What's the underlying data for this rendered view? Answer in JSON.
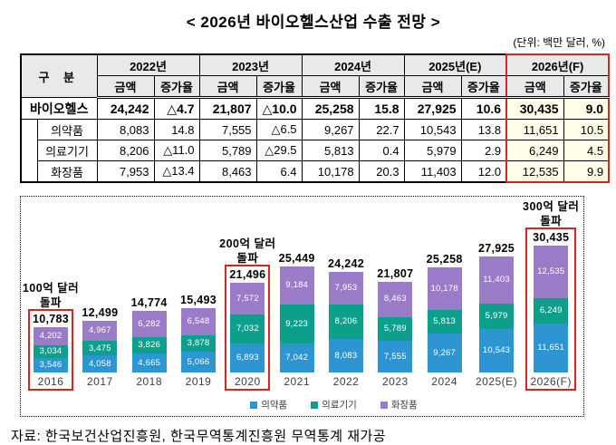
{
  "page": {
    "title": "< 2026년 바이오헬스산업 수출 전망 >",
    "unit_note": "(단위: 백만 달러, %)",
    "source": "자료: 한국보건산업진흥원, 한국무역통계진흥원 무역통계 재가공"
  },
  "colors": {
    "accent_red": "#d9251d",
    "highlight_bg": "#fffde7",
    "header_bg": "#e9e9e9",
    "pharma_blue": "#2c95d2",
    "device_teal": "#0ca08c",
    "cosmetics_purple": "#9a7bc8"
  },
  "table": {
    "corner_label": "구  분",
    "sub_headers": [
      "금액",
      "증가율"
    ],
    "year_groups": [
      "2022년",
      "2023년",
      "2024년",
      "2025년(E)",
      "2026년(F)"
    ],
    "highlight_group_index": 4,
    "rows": [
      {
        "label": "바이오헬스",
        "cells": [
          "24,242",
          "△4.7",
          "21,807",
          "△10.0",
          "25,258",
          "15.8",
          "27,925",
          "10.6",
          "30,435",
          "9.0"
        ]
      },
      {
        "label": "의약품",
        "cells": [
          "8,083",
          "14.8",
          "7,555",
          "△6.5",
          "9,267",
          "22.7",
          "10,543",
          "13.8",
          "11,651",
          "10.5"
        ]
      },
      {
        "label": "의료기기",
        "cells": [
          "8,206",
          "△11.0",
          "5,789",
          "△29.5",
          "5,813",
          "0.4",
          "5,979",
          "2.9",
          "6,249",
          "4.5"
        ]
      },
      {
        "label": "화장품",
        "cells": [
          "7,953",
          "△13.4",
          "8,463",
          "6.4",
          "10,178",
          "20.3",
          "11,403",
          "12.0",
          "12,535",
          "9.9"
        ]
      }
    ]
  },
  "chart_data": {
    "type": "bar",
    "stacked": true,
    "grid": false,
    "legend_position": "bottom",
    "categories": [
      "2016",
      "2017",
      "2018",
      "2019",
      "2020",
      "2021",
      "2022",
      "2023",
      "2024",
      "2025(E)",
      "2026(F)"
    ],
    "series": [
      {
        "key": "pharma",
        "name": "의약품",
        "color": "#2c95d2",
        "values": [
          3546,
          4058,
          4665,
          5066,
          6893,
          7042,
          8083,
          7555,
          9267,
          10543,
          11651
        ],
        "labels": [
          "3,546",
          "4,058",
          "4,665",
          "5,066",
          "6,893",
          "7,042",
          "8,083",
          "7,555",
          "9,267",
          "10,543",
          "11,651"
        ]
      },
      {
        "key": "medical-device",
        "name": "의료기기",
        "color": "#0ca08c",
        "values": [
          3034,
          3475,
          3826,
          3878,
          7032,
          9223,
          8206,
          5789,
          5813,
          5979,
          6249
        ],
        "labels": [
          "3,034",
          "3,475",
          "3,826",
          "3,878",
          "7,032",
          "9,223",
          "8,206",
          "5,789",
          "5,813",
          "5,979",
          "6,249"
        ]
      },
      {
        "key": "cosmetics",
        "name": "화장품",
        "color": "#9a7bc8",
        "values": [
          4202,
          4967,
          6282,
          6548,
          7572,
          9184,
          7953,
          8463,
          10178,
          11403,
          12535
        ],
        "labels": [
          "4,202",
          "4,967",
          "6,282",
          "6,548",
          "7,572",
          "9,184",
          "7,953",
          "8,463",
          "10,178",
          "11,403",
          "12,535"
        ]
      }
    ],
    "totals": [
      10783,
      12499,
      14774,
      15493,
      21496,
      25449,
      24242,
      21807,
      25258,
      27925,
      30435
    ],
    "total_labels": [
      "10,783",
      "12,499",
      "14,774",
      "15,493",
      "21,496",
      "25,449",
      "24,242",
      "21,807",
      "25,258",
      "27,925",
      "30,435"
    ],
    "max_value": 30435,
    "highlight_indices": [
      0,
      4,
      10
    ],
    "annotations": [
      {
        "index": 0,
        "text": "100억 달러\n돌파"
      },
      {
        "index": 4,
        "text": "200억 달러\n돌파"
      },
      {
        "index": 10,
        "text": "300억 달러\n돌파"
      }
    ]
  }
}
